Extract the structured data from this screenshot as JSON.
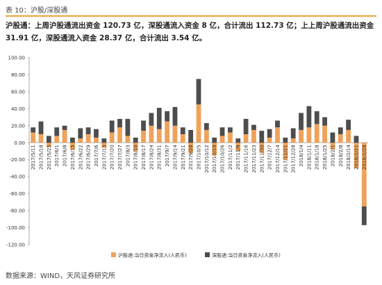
{
  "header": {
    "title": "表 10：沪股/深股通"
  },
  "summary": "沪股通：上周沪股通流出资金 120.73 亿，深股通流入资金 8 亿，合计流出 112.73 亿；上上周沪股通流出资金 31.91 亿，深股通流入资金 28.37 亿，合计流出 3.54 亿。",
  "chart_data": {
    "type": "stacked-bar",
    "categories": [
      "2017/5/11",
      "2017/5/18",
      "2017/5/25",
      "2017/6/1",
      "2017/6/8",
      "2017/6/15",
      "2017/6/22",
      "2017/6/29",
      "2017/7/6",
      "2017/7/13",
      "2017/7/20",
      "2017/7/27",
      "2017/8/3",
      "2017/8/10",
      "2017/8/17",
      "2017/8/24",
      "2017/8/31",
      "2017/9/7",
      "2017/9/14",
      "2017/9/21",
      "2017/9/28",
      "2017/10/5",
      "2017/10/12",
      "2017/10/19",
      "2017/10/26",
      "2017/11/2",
      "2017/11/9",
      "2017/11/16",
      "2017/11/23",
      "2017/11/30",
      "2017/12/7",
      "2017/12/14",
      "2017/12/21",
      "2017/12/28",
      "2018/1/4",
      "2018/1/11",
      "2018/1/18",
      "2018/1/25",
      "2018/2/1",
      "2018/2/8",
      "2018/2/14",
      "2018/2/21",
      "2018/2/28"
    ],
    "series": [
      {
        "name": "沪股通:当日资金净流入(人民币)",
        "color": "#f0a25a",
        "values": [
          12,
          10,
          -5,
          8,
          15,
          -8,
          5,
          10,
          6,
          -6,
          12,
          18,
          8,
          -10,
          14,
          20,
          16,
          25,
          20,
          10,
          -12,
          45,
          15,
          -15,
          8,
          12,
          -10,
          10,
          15,
          -12,
          6,
          18,
          -20,
          5,
          15,
          18,
          22,
          20,
          -8,
          10,
          15,
          -30,
          -75
        ]
      },
      {
        "name": "深股通:当日资金净流入(人民币)",
        "color": "#4d4d4d",
        "values": [
          6,
          15,
          8,
          10,
          5,
          6,
          12,
          8,
          10,
          5,
          14,
          10,
          20,
          6,
          12,
          15,
          25,
          12,
          22,
          8,
          15,
          30,
          8,
          6,
          10,
          6,
          5,
          18,
          6,
          14,
          10,
          8,
          6,
          12,
          20,
          25,
          15,
          10,
          12,
          8,
          12,
          8,
          -22
        ]
      }
    ],
    "ylim": [
      -120,
      100
    ],
    "yticks": [
      {
        "value": 100,
        "label": "100.00"
      },
      {
        "value": 80,
        "label": "80.00"
      },
      {
        "value": 60,
        "label": "60.00"
      },
      {
        "value": 40,
        "label": "40.00"
      },
      {
        "value": 20,
        "label": "20.00"
      },
      {
        "value": 0,
        "label": "0.00"
      },
      {
        "value": -20,
        "label": "-20.00"
      },
      {
        "value": -40,
        "label": "-40.00"
      },
      {
        "value": -60,
        "label": "-60.00"
      },
      {
        "value": -80,
        "label": "-80.00"
      },
      {
        "value": -100,
        "label": "-100.00"
      },
      {
        "value": -120,
        "label": "-120.00"
      }
    ],
    "legend": "bottom"
  },
  "source": "数据来源：WIND，天风证券研究所"
}
